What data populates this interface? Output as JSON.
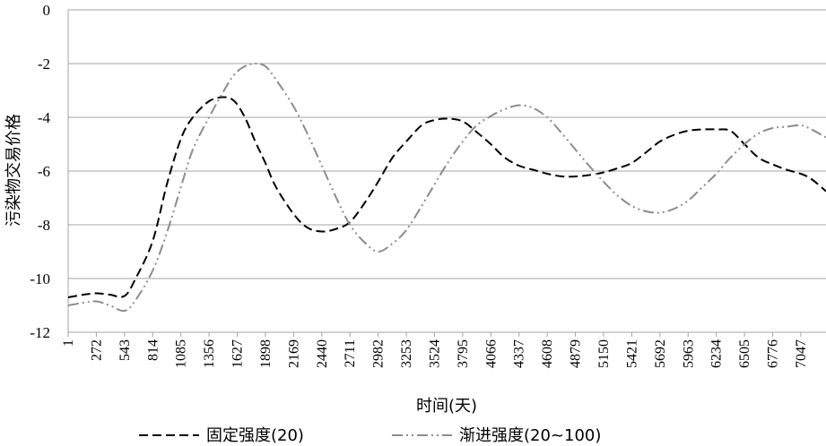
{
  "chart_data": {
    "type": "line",
    "title": "",
    "xlabel": "时间(天)",
    "ylabel": "污染物交易价格",
    "ylim": [
      -12,
      0
    ],
    "yticks": [
      "0",
      "-2",
      "-4",
      "-6",
      "-8",
      "-10",
      "-12"
    ],
    "ytick_values": [
      0,
      -2,
      -4,
      -6,
      -8,
      -10,
      -12
    ],
    "xlim": [
      1,
      7289
    ],
    "x_categories": [
      "1",
      "272",
      "543",
      "814",
      "1085",
      "1356",
      "1627",
      "1898",
      "2169",
      "2440",
      "2711",
      "2982",
      "3253",
      "3524",
      "3795",
      "4066",
      "4337",
      "4608",
      "4879",
      "5150",
      "5421",
      "5692",
      "5963",
      "6234",
      "6505",
      "6776",
      "7047"
    ],
    "grid": true,
    "legend_position": "bottom",
    "series": [
      {
        "name": "固定强度(20)",
        "color": "#000000",
        "dash": "dashed",
        "x": [
          1,
          150,
          272,
          400,
          543,
          650,
          814,
          950,
          1085,
          1200,
          1356,
          1500,
          1600,
          1700,
          1800,
          1898,
          2000,
          2169,
          2300,
          2440,
          2580,
          2711,
          2850,
          2982,
          3120,
          3253,
          3400,
          3524,
          3650,
          3795,
          3930,
          4066,
          4200,
          4337,
          4470,
          4608,
          4750,
          4879,
          5010,
          5150,
          5280,
          5421,
          5560,
          5692,
          5830,
          5963,
          6100,
          6234,
          6370,
          6505,
          6640,
          6776,
          6910,
          7047,
          7150,
          7289
        ],
        "y": [
          -10.7,
          -10.6,
          -10.55,
          -10.6,
          -10.65,
          -10.0,
          -8.6,
          -6.5,
          -4.8,
          -4.0,
          -3.4,
          -3.25,
          -3.4,
          -4.0,
          -4.9,
          -5.7,
          -6.6,
          -7.6,
          -8.1,
          -8.25,
          -8.15,
          -7.9,
          -7.2,
          -6.4,
          -5.5,
          -4.9,
          -4.3,
          -4.1,
          -4.05,
          -4.15,
          -4.55,
          -5.0,
          -5.5,
          -5.8,
          -5.95,
          -6.1,
          -6.2,
          -6.2,
          -6.15,
          -6.05,
          -5.9,
          -5.7,
          -5.3,
          -4.9,
          -4.65,
          -4.5,
          -4.45,
          -4.45,
          -4.5,
          -5.0,
          -5.5,
          -5.75,
          -5.95,
          -6.1,
          -6.3,
          -6.75
        ]
      },
      {
        "name": "渐进强度(20~100)",
        "color": "#8c8c8c",
        "dash": "dash-dot-dot",
        "x": [
          1,
          150,
          272,
          400,
          543,
          650,
          814,
          950,
          1085,
          1200,
          1356,
          1500,
          1600,
          1700,
          1800,
          1898,
          2000,
          2169,
          2300,
          2440,
          2580,
          2711,
          2850,
          2982,
          3120,
          3253,
          3400,
          3524,
          3650,
          3795,
          3930,
          4066,
          4200,
          4337,
          4470,
          4608,
          4750,
          4879,
          5010,
          5150,
          5280,
          5421,
          5560,
          5692,
          5830,
          5963,
          6100,
          6234,
          6370,
          6505,
          6640,
          6776,
          6910,
          7047,
          7150,
          7289
        ],
        "y": [
          -11.0,
          -10.9,
          -10.85,
          -11.0,
          -11.2,
          -10.8,
          -9.7,
          -8.3,
          -6.6,
          -5.2,
          -4.0,
          -3.0,
          -2.4,
          -2.1,
          -2.0,
          -2.1,
          -2.6,
          -3.6,
          -4.6,
          -5.8,
          -7.0,
          -8.0,
          -8.65,
          -9.0,
          -8.7,
          -8.2,
          -7.3,
          -6.5,
          -5.7,
          -4.9,
          -4.3,
          -3.95,
          -3.7,
          -3.55,
          -3.65,
          -4.0,
          -4.6,
          -5.2,
          -5.8,
          -6.4,
          -6.9,
          -7.3,
          -7.5,
          -7.55,
          -7.4,
          -7.1,
          -6.6,
          -6.1,
          -5.5,
          -5.0,
          -4.6,
          -4.4,
          -4.35,
          -4.3,
          -4.45,
          -4.75
        ]
      }
    ]
  }
}
